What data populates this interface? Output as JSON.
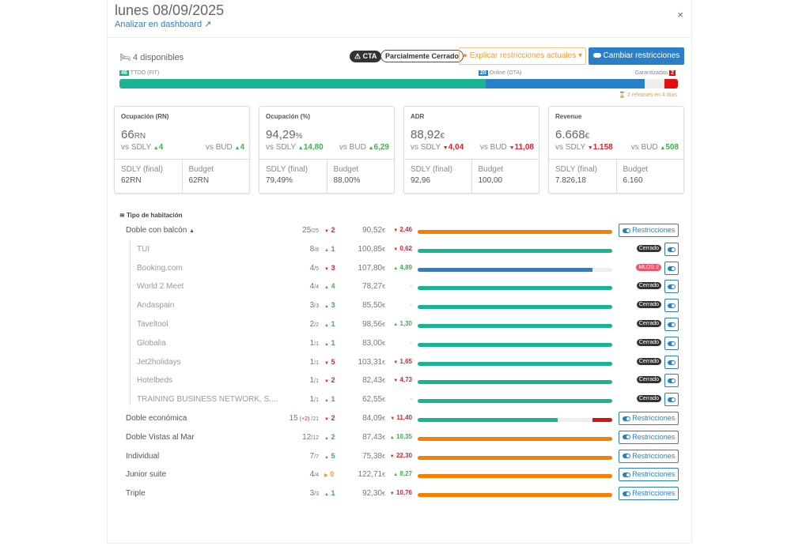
{
  "header": {
    "title": "lunes 08/09/2025",
    "dashboard_link": "Analizar en dashboard",
    "close": "×"
  },
  "availability": {
    "icon": "bed-icon",
    "label": "4 disponibles"
  },
  "badges": {
    "cta": "CTA",
    "partial": "Parcialmente Cerrado"
  },
  "buttons": {
    "explain": "Explicar restricciones actuales",
    "change": "Cambiar restricciones"
  },
  "segments": [
    {
      "count": "46",
      "label": "TTOO (FIT)",
      "value": 46,
      "color": "#1ab394"
    },
    {
      "count": "20",
      "label": "Online (OTA)",
      "value": 20,
      "color": "#2a80c8"
    },
    {
      "count": "",
      "label": "",
      "value": 2.5,
      "color": "#eeeeee"
    },
    {
      "count": "2",
      "label": "Garantizadas",
      "value": 1.7,
      "color": "#e01010"
    }
  ],
  "releases": "2 releases en 4 días",
  "cards": [
    {
      "title": "Ocupación (RN)",
      "value": "66",
      "unit": "RN",
      "vs_sdly_label": "vs SDLY",
      "vs_sdly": "4",
      "sdly_dir": "up",
      "vs_bud_label": "vs BUD",
      "vs_bud": "4",
      "bud_dir": "up",
      "sdly_final_label": "SDLY (final)",
      "sdly_final": "62RN",
      "budget_label": "Budget",
      "budget": "62RN"
    },
    {
      "title": "Ocupación (%)",
      "value": "94,29",
      "unit": "%",
      "vs_sdly_label": "vs SDLY",
      "vs_sdly": "14,80",
      "sdly_dir": "up",
      "vs_bud_label": "vs BUD",
      "vs_bud": "6,29",
      "bud_dir": "up",
      "sdly_final_label": "SDLY (final)",
      "sdly_final": "79,49%",
      "budget_label": "Budget",
      "budget": "88,00%"
    },
    {
      "title": "ADR",
      "value": "88,92",
      "unit": "€",
      "vs_sdly_label": "vs SDLY",
      "vs_sdly": "4,04",
      "sdly_dir": "dn",
      "vs_bud_label": "vs BUD",
      "vs_bud": "11,08",
      "bud_dir": "dn",
      "sdly_final_label": "SDLY (final)",
      "sdly_final": "92,96",
      "budget_label": "Budget",
      "budget": "100,00"
    },
    {
      "title": "Revenue",
      "value": "6.668",
      "unit": "€",
      "vs_sdly_label": "vs SDLY",
      "vs_sdly": "1.158",
      "sdly_dir": "dn",
      "vs_bud_label": "vs BUD",
      "vs_bud": "508",
      "bud_dir": "up",
      "sdly_final_label": "SDLY (final)",
      "sdly_final": "7.826,18",
      "budget_label": "Budget",
      "budget": "6.160"
    }
  ],
  "section_title": "Tipo de habitación",
  "restr_label": "Restricciones",
  "rows": [
    {
      "name": "Doble con balcón",
      "expanded": true,
      "occ": "25",
      "extra": "",
      "total": "/25",
      "od": "2",
      "odir": "dn",
      "adr": "90,52",
      "ad": "2,46",
      "adir": "dn",
      "bar": [
        [
          1,
          "#f57f00"
        ]
      ],
      "type": "main"
    },
    {
      "name": "TUI",
      "occ": "8",
      "total": "/8",
      "od": "1",
      "odir": "up",
      "adr": "100,85",
      "ad": "0,62",
      "adir": "dn",
      "bar": [
        [
          1,
          "#1ab394"
        ]
      ],
      "type": "sub",
      "status": "Cerrado"
    },
    {
      "name": "Booking.com",
      "occ": "4",
      "total": "/5",
      "od": "3",
      "odir": "dn",
      "adr": "107,80",
      "ad": "4,89",
      "adir": "up",
      "bar": [
        [
          0.9,
          "#2a80c8"
        ]
      ],
      "type": "sub",
      "status": "MLOS 2"
    },
    {
      "name": "World 2 Meet",
      "occ": "4",
      "total": "/4",
      "od": "4",
      "odir": "up",
      "adr": "78,27",
      "ad": "-",
      "adir": "none",
      "bar": [
        [
          1,
          "#1ab394"
        ]
      ],
      "type": "sub",
      "status": "Cerrado"
    },
    {
      "name": "Andaspain",
      "occ": "3",
      "total": "/3",
      "od": "3",
      "odir": "up",
      "adr": "85,50",
      "ad": "-",
      "adir": "none",
      "bar": [
        [
          1,
          "#1ab394"
        ]
      ],
      "type": "sub",
      "status": "Cerrado"
    },
    {
      "name": "Taveltool",
      "occ": "2",
      "total": "/2",
      "od": "1",
      "odir": "up",
      "adr": "98,56",
      "ad": "1,30",
      "adir": "up",
      "bar": [
        [
          1,
          "#1ab394"
        ]
      ],
      "type": "sub",
      "status": "Cerrado"
    },
    {
      "name": "Globalia",
      "occ": "1",
      "total": "/1",
      "od": "1",
      "odir": "up",
      "adr": "83,00",
      "ad": "-",
      "adir": "none",
      "bar": [
        [
          1,
          "#1ab394"
        ]
      ],
      "type": "sub",
      "status": "Cerrado"
    },
    {
      "name": "Jet2holidays",
      "occ": "1",
      "total": "/1",
      "od": "5",
      "odir": "dn",
      "adr": "103,31",
      "ad": "1,65",
      "adir": "dn",
      "bar": [
        [
          1,
          "#1ab394"
        ]
      ],
      "type": "sub",
      "status": "Cerrado"
    },
    {
      "name": "Hotelbeds",
      "occ": "1",
      "total": "/1",
      "od": "2",
      "odir": "dn",
      "adr": "82,43",
      "ad": "4,73",
      "adir": "dn",
      "bar": [
        [
          1,
          "#1ab394"
        ]
      ],
      "type": "sub",
      "status": "Cerrado"
    },
    {
      "name": "TRAINING BUSINESS NETWORK, S....",
      "occ": "1",
      "total": "/1",
      "od": "1",
      "odir": "up",
      "adr": "62,55",
      "ad": "-",
      "adir": "none",
      "bar": [
        [
          1,
          "#1ab394"
        ]
      ],
      "type": "sub",
      "status": "Cerrado"
    },
    {
      "name": "Doble económica",
      "occ": "15",
      "extra": " (+2) ",
      "total": "/21",
      "od": "2",
      "odir": "dn",
      "adr": "84,09",
      "ad": "11,40",
      "adir": "dn",
      "bar": [
        [
          0.72,
          "#1ab394"
        ],
        [
          0.18,
          "#eeeeee"
        ],
        [
          0.1,
          "#e01010"
        ]
      ],
      "type": "main"
    },
    {
      "name": "Doble Vistas al Mar",
      "occ": "12",
      "total": "/12",
      "od": "2",
      "odir": "up",
      "adr": "87,43",
      "ad": "10,35",
      "adir": "up",
      "bar": [
        [
          1,
          "#f57f00"
        ]
      ],
      "type": "main"
    },
    {
      "name": "Individual",
      "occ": "7",
      "total": "/7",
      "od": "5",
      "odir": "up",
      "adr": "75,38",
      "ad": "22,30",
      "adir": "dn",
      "bar": [
        [
          1,
          "#f57f00"
        ]
      ],
      "type": "main"
    },
    {
      "name": "Junior suite",
      "occ": "4",
      "total": "/4",
      "od": "0",
      "odir": "eq",
      "adr": "122,71",
      "ad": "8,27",
      "adir": "up",
      "bar": [
        [
          1,
          "#f57f00"
        ]
      ],
      "type": "main"
    },
    {
      "name": "Triple",
      "occ": "3",
      "total": "/3",
      "od": "1",
      "odir": "up",
      "adr": "92,30",
      "ad": "10,76",
      "adir": "dn",
      "bar": [
        [
          1,
          "#f57f00"
        ]
      ],
      "type": "main"
    }
  ],
  "colors": {
    "accent": "#2a80c8",
    "ttoo": "#1ab394",
    "ota": "#2a80c8",
    "orange": "#f57f00",
    "up": "#3cb44b",
    "down": "#e8202a",
    "closed_badge": "#333333",
    "mlos_badge": "#f0566a"
  }
}
